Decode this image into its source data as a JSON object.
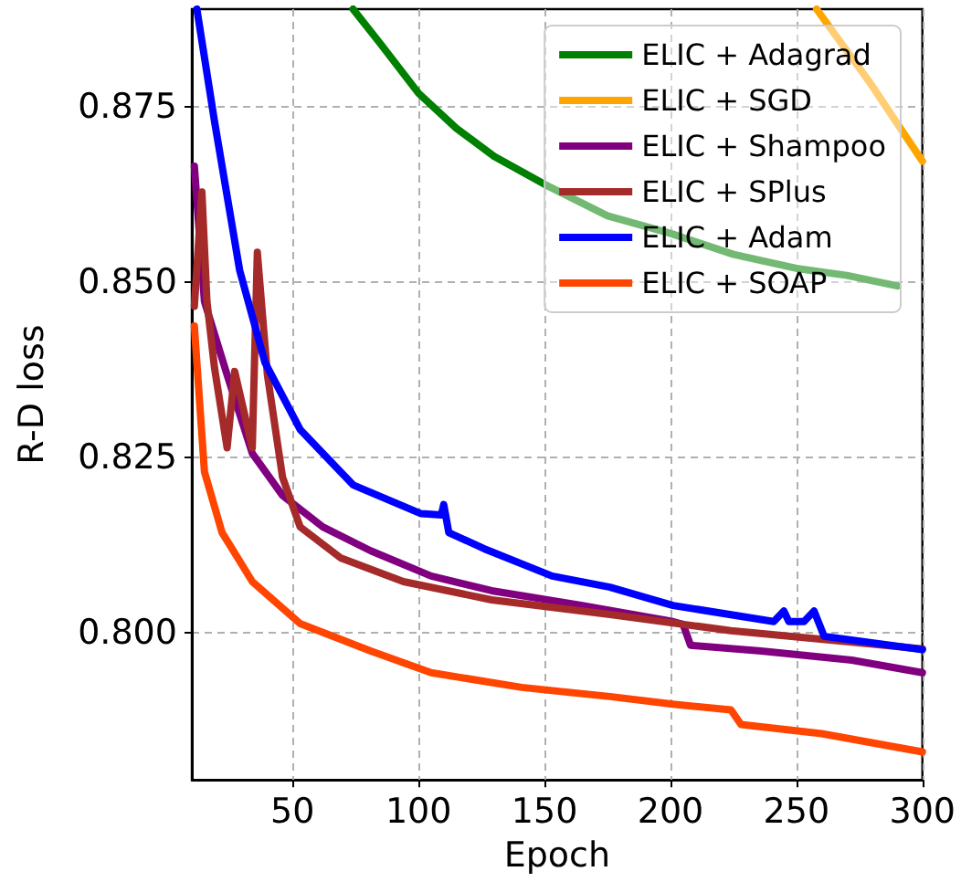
{
  "chart_data": {
    "type": "line",
    "xlabel": "Epoch",
    "ylabel": "R-D loss",
    "xlim": [
      10,
      300
    ],
    "ylim": [
      0.779,
      0.889
    ],
    "xticks": [
      50,
      100,
      150,
      200,
      250,
      300
    ],
    "yticks": [
      {
        "value": 0.8,
        "label": "0.800"
      },
      {
        "value": 0.825,
        "label": "0.825"
      },
      {
        "value": 0.85,
        "label": "0.850"
      },
      {
        "value": 0.875,
        "label": "0.875"
      }
    ],
    "grid": true,
    "legend": "top right",
    "marker": "none",
    "line_style": "solid",
    "series": [
      {
        "name": "ELIC + Adagrad",
        "color": "#008000",
        "x": [
          74,
          85,
          100,
          115,
          130,
          150,
          175,
          200,
          225,
          250,
          270,
          290
        ],
        "values": [
          0.889,
          0.884,
          0.877,
          0.872,
          0.868,
          0.864,
          0.8595,
          0.857,
          0.854,
          0.852,
          0.851,
          0.8495
        ]
      },
      {
        "name": "ELIC + SGD",
        "color": "#ffa500",
        "x": [
          258,
          279,
          300
        ],
        "values": [
          0.889,
          0.8786,
          0.8673
        ]
      },
      {
        "name": "ELIC + Shampoo",
        "color": "#800080",
        "x": [
          11,
          15,
          24,
          34,
          46,
          62,
          81,
          105,
          129,
          165,
          201,
          205,
          208,
          236,
          272,
          300
        ],
        "values": [
          0.8666,
          0.8473,
          0.8368,
          0.8256,
          0.8196,
          0.8151,
          0.8117,
          0.8081,
          0.806,
          0.8039,
          0.8016,
          0.8012,
          0.7982,
          0.7974,
          0.7961,
          0.7943
        ]
      },
      {
        "name": "ELIC + SPlus",
        "color": "#a52a2a",
        "x": [
          11,
          14,
          16,
          19,
          24,
          27,
          34,
          36,
          40,
          46,
          53,
          69,
          94,
          129,
          176,
          224,
          271,
          300
        ],
        "values": [
          0.8466,
          0.8629,
          0.8473,
          0.8378,
          0.8264,
          0.8373,
          0.8264,
          0.8543,
          0.8368,
          0.8222,
          0.8151,
          0.8107,
          0.8073,
          0.8047,
          0.8026,
          0.8003,
          0.7987,
          0.7977
        ]
      },
      {
        "name": "ELIC + Adam",
        "color": "#0000ff",
        "x": [
          12,
          19,
          29,
          39,
          53,
          74,
          101,
          109,
          110,
          112,
          126,
          153,
          176,
          201,
          241,
          245,
          247,
          253,
          257,
          261,
          300
        ],
        "values": [
          0.889,
          0.873,
          0.8517,
          0.8386,
          0.829,
          0.8211,
          0.817,
          0.8168,
          0.8183,
          0.8143,
          0.812,
          0.8081,
          0.8065,
          0.8039,
          0.8016,
          0.8031,
          0.8016,
          0.8016,
          0.8031,
          0.7995,
          0.7976
        ]
      },
      {
        "name": "ELIC + SOAP",
        "color": "#ff4500",
        "x": [
          11,
          15,
          22,
          34,
          53,
          81,
          105,
          141,
          176,
          201,
          224,
          228,
          260,
          300
        ],
        "values": [
          0.8438,
          0.823,
          0.8143,
          0.8073,
          0.8013,
          0.7974,
          0.7943,
          0.7922,
          0.7909,
          0.7898,
          0.789,
          0.7869,
          0.7856,
          0.783
        ]
      }
    ]
  }
}
